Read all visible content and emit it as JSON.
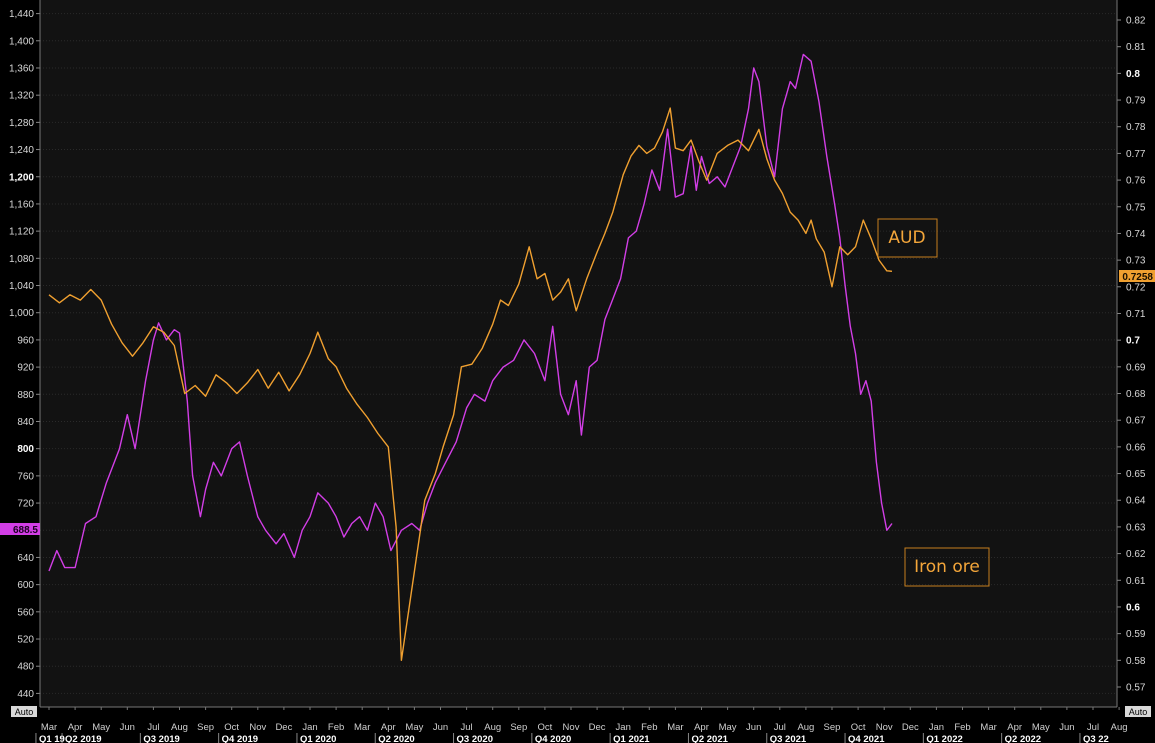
{
  "chart_data": {
    "type": "line",
    "title": "",
    "left_axis": {
      "ticks": [
        "1,440",
        "1,400",
        "1,360",
        "1,320",
        "1,280",
        "1,240",
        "1,200",
        "1,160",
        "1,120",
        "1,080",
        "1,040",
        "1,000",
        "960",
        "920",
        "880",
        "840",
        "800",
        "760",
        "720",
        "680",
        "640",
        "600",
        "560",
        "520",
        "480",
        "440"
      ],
      "ylim": [
        420,
        1460
      ],
      "auto_label": "Auto"
    },
    "right_axis": {
      "ticks": [
        "0.82",
        "0.81",
        "0.8",
        "0.79",
        "0.78",
        "0.77",
        "0.76",
        "0.75",
        "0.74",
        "0.73",
        "0.72",
        "0.71",
        "0.7",
        "0.69",
        "0.68",
        "0.67",
        "0.66",
        "0.65",
        "0.64",
        "0.63",
        "0.62",
        "0.61",
        "0.6",
        "0.59",
        "0.58",
        "0.57"
      ],
      "ylim": [
        0.5625,
        0.8275
      ],
      "auto_label": "Auto"
    },
    "x_axis": {
      "months": [
        "Mar",
        "Apr",
        "May",
        "Jun",
        "Jul",
        "Aug",
        "Sep",
        "Oct",
        "Nov",
        "Dec",
        "Jan",
        "Feb",
        "Mar",
        "Apr",
        "May",
        "Jun",
        "Jul",
        "Aug",
        "Sep",
        "Oct",
        "Nov",
        "Dec",
        "Jan",
        "Feb",
        "Mar",
        "Apr",
        "May",
        "Jun",
        "Jul",
        "Aug",
        "Sep",
        "Oct",
        "Nov",
        "Dec",
        "Jan",
        "Feb",
        "Mar",
        "Apr",
        "May",
        "Jun",
        "Jul",
        "Aug"
      ],
      "quarters": [
        "Q1 19",
        "Q2 2019",
        "Q3 2019",
        "Q4 2019",
        "Q1 2020",
        "Q2 2020",
        "Q3 2020",
        "Q4 2020",
        "Q1 2021",
        "Q2 2021",
        "Q3 2021",
        "Q4 2021",
        "Q1 2022",
        "Q2 2022",
        "Q3 22"
      ]
    },
    "series": [
      {
        "name": "Iron ore",
        "axis": "left",
        "color": "#d23ee6",
        "last_value_label": "688.5",
        "points": [
          [
            0.0,
            620
          ],
          [
            0.3,
            650
          ],
          [
            0.6,
            625
          ],
          [
            1.0,
            625
          ],
          [
            1.4,
            690
          ],
          [
            1.8,
            700
          ],
          [
            2.2,
            750
          ],
          [
            2.7,
            800
          ],
          [
            3.0,
            850
          ],
          [
            3.3,
            800
          ],
          [
            3.7,
            900
          ],
          [
            4.0,
            960
          ],
          [
            4.2,
            985
          ],
          [
            4.5,
            960
          ],
          [
            4.8,
            975
          ],
          [
            5.0,
            970
          ],
          [
            5.3,
            870
          ],
          [
            5.5,
            760
          ],
          [
            5.8,
            700
          ],
          [
            6.0,
            740
          ],
          [
            6.3,
            780
          ],
          [
            6.6,
            760
          ],
          [
            7.0,
            800
          ],
          [
            7.3,
            810
          ],
          [
            7.6,
            760
          ],
          [
            8.0,
            700
          ],
          [
            8.3,
            680
          ],
          [
            8.7,
            660
          ],
          [
            9.0,
            675
          ],
          [
            9.4,
            640
          ],
          [
            9.7,
            680
          ],
          [
            10.0,
            700
          ],
          [
            10.3,
            735
          ],
          [
            10.7,
            720
          ],
          [
            11.0,
            700
          ],
          [
            11.3,
            670
          ],
          [
            11.6,
            690
          ],
          [
            11.9,
            700
          ],
          [
            12.2,
            680
          ],
          [
            12.5,
            720
          ],
          [
            12.8,
            700
          ],
          [
            13.1,
            650
          ],
          [
            13.5,
            680
          ],
          [
            13.9,
            690
          ],
          [
            14.2,
            680
          ],
          [
            14.5,
            720
          ],
          [
            14.8,
            750
          ],
          [
            15.2,
            780
          ],
          [
            15.6,
            810
          ],
          [
            16.0,
            860
          ],
          [
            16.3,
            880
          ],
          [
            16.7,
            870
          ],
          [
            17.0,
            900
          ],
          [
            17.4,
            920
          ],
          [
            17.8,
            930
          ],
          [
            18.2,
            960
          ],
          [
            18.6,
            940
          ],
          [
            19.0,
            900
          ],
          [
            19.3,
            980
          ],
          [
            19.6,
            880
          ],
          [
            19.9,
            850
          ],
          [
            20.2,
            900
          ],
          [
            20.4,
            820
          ],
          [
            20.7,
            920
          ],
          [
            21.0,
            930
          ],
          [
            21.3,
            990
          ],
          [
            21.6,
            1020
          ],
          [
            21.9,
            1050
          ],
          [
            22.2,
            1110
          ],
          [
            22.5,
            1120
          ],
          [
            22.8,
            1160
          ],
          [
            23.1,
            1210
          ],
          [
            23.4,
            1180
          ],
          [
            23.7,
            1270
          ],
          [
            24.0,
            1170
          ],
          [
            24.3,
            1175
          ],
          [
            24.6,
            1245
          ],
          [
            24.8,
            1180
          ],
          [
            25.0,
            1230
          ],
          [
            25.3,
            1190
          ],
          [
            25.6,
            1200
          ],
          [
            25.9,
            1185
          ],
          [
            26.2,
            1215
          ],
          [
            26.5,
            1245
          ],
          [
            26.8,
            1300
          ],
          [
            27.0,
            1360
          ],
          [
            27.2,
            1340
          ],
          [
            27.5,
            1245
          ],
          [
            27.8,
            1200
          ],
          [
            28.1,
            1300
          ],
          [
            28.4,
            1340
          ],
          [
            28.6,
            1330
          ],
          [
            28.9,
            1380
          ],
          [
            29.2,
            1370
          ],
          [
            29.5,
            1310
          ],
          [
            29.8,
            1230
          ],
          [
            30.1,
            1160
          ],
          [
            30.3,
            1110
          ],
          [
            30.5,
            1040
          ],
          [
            30.7,
            980
          ],
          [
            30.9,
            940
          ],
          [
            31.1,
            880
          ],
          [
            31.3,
            900
          ],
          [
            31.5,
            870
          ],
          [
            31.7,
            780
          ],
          [
            31.9,
            720
          ],
          [
            32.1,
            680
          ],
          [
            32.3,
            690
          ]
        ]
      },
      {
        "name": "AUD",
        "axis": "right",
        "color": "#f0a030",
        "last_value_label": "0.7258",
        "points": [
          [
            0.0,
            0.717
          ],
          [
            0.4,
            0.714
          ],
          [
            0.8,
            0.717
          ],
          [
            1.2,
            0.715
          ],
          [
            1.6,
            0.719
          ],
          [
            2.0,
            0.715
          ],
          [
            2.4,
            0.706
          ],
          [
            2.8,
            0.699
          ],
          [
            3.2,
            0.694
          ],
          [
            3.6,
            0.699
          ],
          [
            4.0,
            0.705
          ],
          [
            4.4,
            0.703
          ],
          [
            4.8,
            0.698
          ],
          [
            5.2,
            0.68
          ],
          [
            5.6,
            0.683
          ],
          [
            6.0,
            0.679
          ],
          [
            6.4,
            0.687
          ],
          [
            6.8,
            0.684
          ],
          [
            7.2,
            0.68
          ],
          [
            7.6,
            0.684
          ],
          [
            8.0,
            0.689
          ],
          [
            8.4,
            0.682
          ],
          [
            8.8,
            0.688
          ],
          [
            9.2,
            0.681
          ],
          [
            9.6,
            0.687
          ],
          [
            10.0,
            0.695
          ],
          [
            10.3,
            0.703
          ],
          [
            10.7,
            0.693
          ],
          [
            11.0,
            0.69
          ],
          [
            11.4,
            0.682
          ],
          [
            11.8,
            0.676
          ],
          [
            12.2,
            0.671
          ],
          [
            12.6,
            0.665
          ],
          [
            13.0,
            0.66
          ],
          [
            13.3,
            0.63
          ],
          [
            13.5,
            0.58
          ],
          [
            13.8,
            0.6
          ],
          [
            14.1,
            0.62
          ],
          [
            14.4,
            0.64
          ],
          [
            14.8,
            0.65
          ],
          [
            15.1,
            0.66
          ],
          [
            15.5,
            0.672
          ],
          [
            15.8,
            0.69
          ],
          [
            16.2,
            0.691
          ],
          [
            16.6,
            0.697
          ],
          [
            17.0,
            0.706
          ],
          [
            17.3,
            0.715
          ],
          [
            17.6,
            0.713
          ],
          [
            18.0,
            0.721
          ],
          [
            18.4,
            0.735
          ],
          [
            18.7,
            0.723
          ],
          [
            19.0,
            0.725
          ],
          [
            19.3,
            0.715
          ],
          [
            19.6,
            0.718
          ],
          [
            19.9,
            0.723
          ],
          [
            20.2,
            0.711
          ],
          [
            20.6,
            0.723
          ],
          [
            21.0,
            0.733
          ],
          [
            21.3,
            0.74
          ],
          [
            21.6,
            0.748
          ],
          [
            22.0,
            0.762
          ],
          [
            22.3,
            0.769
          ],
          [
            22.6,
            0.773
          ],
          [
            22.9,
            0.77
          ],
          [
            23.2,
            0.772
          ],
          [
            23.5,
            0.778
          ],
          [
            23.8,
            0.787
          ],
          [
            24.0,
            0.772
          ],
          [
            24.3,
            0.771
          ],
          [
            24.6,
            0.775
          ],
          [
            24.9,
            0.767
          ],
          [
            25.2,
            0.76
          ],
          [
            25.6,
            0.77
          ],
          [
            26.0,
            0.773
          ],
          [
            26.4,
            0.775
          ],
          [
            26.8,
            0.771
          ],
          [
            27.2,
            0.779
          ],
          [
            27.5,
            0.768
          ],
          [
            27.8,
            0.76
          ],
          [
            28.1,
            0.755
          ],
          [
            28.4,
            0.748
          ],
          [
            28.7,
            0.745
          ],
          [
            29.0,
            0.74
          ],
          [
            29.2,
            0.745
          ],
          [
            29.4,
            0.738
          ],
          [
            29.7,
            0.733
          ],
          [
            30.0,
            0.72
          ],
          [
            30.3,
            0.735
          ],
          [
            30.6,
            0.732
          ],
          [
            30.9,
            0.735
          ],
          [
            31.2,
            0.745
          ],
          [
            31.5,
            0.738
          ],
          [
            31.8,
            0.73
          ],
          [
            32.1,
            0.726
          ],
          [
            32.3,
            0.7258
          ]
        ]
      }
    ],
    "annotations": [
      {
        "text": "AUD",
        "color": "#f4a63a"
      },
      {
        "text": "Iron ore",
        "color": "#f4a63a"
      }
    ]
  }
}
